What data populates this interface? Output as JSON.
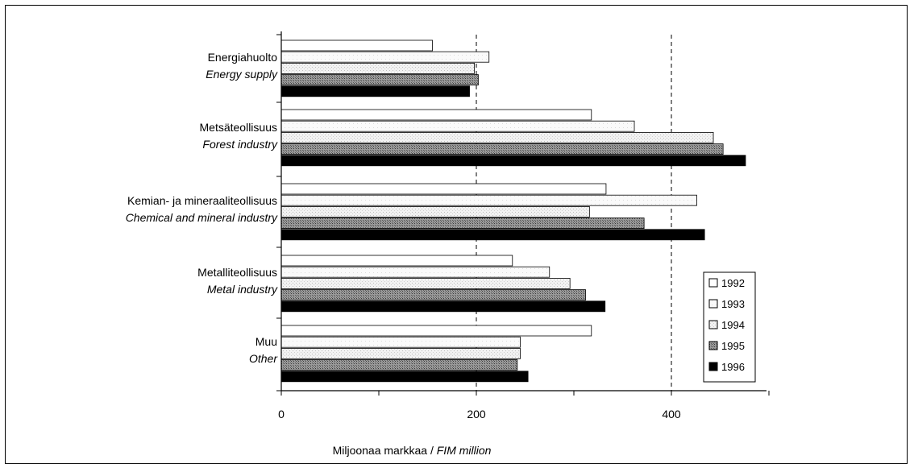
{
  "chart_data": {
    "type": "bar",
    "orientation": "horizontal",
    "categories": [
      {
        "fi": "Energiahuolto",
        "en": "Energy supply"
      },
      {
        "fi": "Metsäteollisuus",
        "en": "Forest industry"
      },
      {
        "fi": "Kemian- ja mineraaliteollisuus",
        "en": "Chemical and mineral industry"
      },
      {
        "fi": "Metalliteollisuus",
        "en": "Metal industry"
      },
      {
        "fi": "Muu",
        "en": "Other"
      }
    ],
    "series": [
      {
        "name": "1992",
        "values": [
          155,
          318,
          333,
          237,
          318
        ]
      },
      {
        "name": "1993",
        "values": [
          213,
          362,
          426,
          275,
          245
        ]
      },
      {
        "name": "1994",
        "values": [
          198,
          443,
          316,
          296,
          245
        ]
      },
      {
        "name": "1995",
        "values": [
          202,
          453,
          372,
          312,
          242
        ]
      },
      {
        "name": "1996",
        "values": [
          193,
          476,
          434,
          332,
          253
        ]
      }
    ],
    "xlabel_fi": "Miljoonaa markkaa",
    "xlabel_en": "FIM million",
    "xlabel_sep": " / ",
    "xlim": [
      0,
      500
    ],
    "xticks": [
      0,
      200,
      400
    ],
    "grid": "dashed vertical at 200 and 400",
    "legend_position": "right",
    "colors": {
      "1992": "#ffffff",
      "1993": "#f4f4f4",
      "1994": "#e4e4e4",
      "1995": "#8c8c8c",
      "1996": "#000000"
    }
  }
}
